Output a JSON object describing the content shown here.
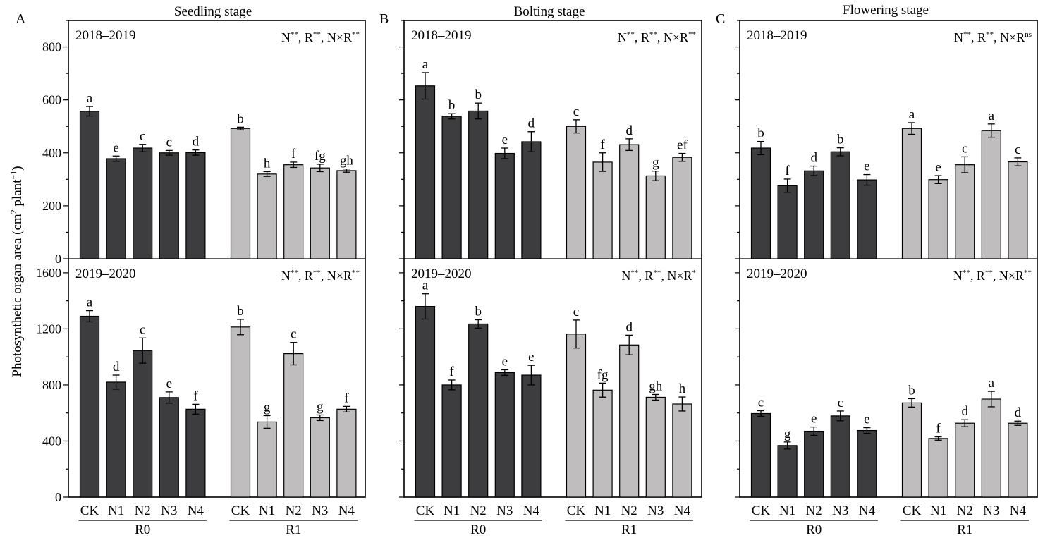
{
  "colors": {
    "R0": "#3d3d3f",
    "R1": "#c0bdbf"
  },
  "ylabel": {
    "prefix": "Photosynthetic organ area (cm",
    "sup1": "2",
    "mid": " plant",
    "sup2": "−1",
    "suffix": ")"
  },
  "group_labels": [
    "R0",
    "R1"
  ],
  "panels": [
    {
      "letter": "A",
      "title": "Seedling stage"
    },
    {
      "letter": "B",
      "title": "Bolting stage"
    },
    {
      "letter": "C",
      "title": "Flowering stage"
    }
  ],
  "rows": [
    {
      "year": "2018–2019",
      "ylim": [
        0,
        900
      ],
      "ticks": [
        0,
        200,
        400,
        600,
        800
      ]
    },
    {
      "year": "2019–2020",
      "ylim": [
        0,
        1700
      ],
      "ticks": [
        0,
        400,
        800,
        1200,
        1600
      ]
    }
  ],
  "chart_data": {
    "type": "bar",
    "categories": [
      "CK",
      "N1",
      "N2",
      "N3",
      "N4"
    ],
    "groups": [
      "R0",
      "R1"
    ],
    "ylabel": "Photosynthetic organ area (cm2 plant−1)",
    "subplots": [
      {
        "title": "Seedling stage",
        "letter": "A",
        "year": "2018–2019",
        "row": 0,
        "col": 0,
        "significance": [
          {
            "f": "N",
            "s": "**"
          },
          {
            "f": "R",
            "s": "**"
          },
          {
            "f": "N×R",
            "s": "**"
          }
        ],
        "series": [
          {
            "name": "R0",
            "values": [
              557,
              378,
              418,
              400,
              401
            ],
            "err": [
              18,
              10,
              14,
              9,
              10
            ],
            "labels": [
              "a",
              "e",
              "c",
              "c",
              "d"
            ]
          },
          {
            "name": "R1",
            "values": [
              492,
              320,
              355,
              343,
              333
            ],
            "err": [
              5,
              9,
              10,
              14,
              6
            ],
            "labels": [
              "b",
              "h",
              "f",
              "fg",
              "gh"
            ]
          }
        ]
      },
      {
        "title": "Bolting stage",
        "letter": "B",
        "year": "2018–2019",
        "row": 0,
        "col": 1,
        "significance": [
          {
            "f": "N",
            "s": "**"
          },
          {
            "f": "R",
            "s": "**"
          },
          {
            "f": "N×R",
            "s": "**"
          }
        ],
        "series": [
          {
            "name": "R0",
            "values": [
              653,
              538,
              558,
              398,
              442
            ],
            "err": [
              50,
              10,
              30,
              20,
              38
            ],
            "labels": [
              "a",
              "b",
              "b",
              "e",
              "d"
            ]
          },
          {
            "name": "R1",
            "values": [
              500,
              365,
              431,
              313,
              383
            ],
            "err": [
              25,
              35,
              22,
              18,
              15
            ],
            "labels": [
              "c",
              "f",
              "d",
              "g",
              "ef"
            ]
          }
        ]
      },
      {
        "title": "Flowering stage",
        "letter": "C",
        "year": "2018–2019",
        "row": 0,
        "col": 2,
        "significance": [
          {
            "f": "N",
            "s": "**"
          },
          {
            "f": "R",
            "s": "**"
          },
          {
            "f": "N×R",
            "s": "ns"
          }
        ],
        "series": [
          {
            "name": "R0",
            "values": [
              418,
              276,
              332,
              404,
              298
            ],
            "err": [
              25,
              25,
              18,
              15,
              20
            ],
            "labels": [
              "b",
              "f",
              "d",
              "b",
              "e"
            ]
          },
          {
            "name": "R1",
            "values": [
              492,
              299,
              355,
              484,
              366
            ],
            "err": [
              22,
              15,
              30,
              25,
              15
            ],
            "labels": [
              "a",
              "e",
              "c",
              "a",
              "c"
            ]
          }
        ]
      },
      {
        "title": "Seedling stage",
        "letter": "A",
        "year": "2019–2020",
        "row": 1,
        "col": 0,
        "significance": [
          {
            "f": "N",
            "s": "**"
          },
          {
            "f": "R",
            "s": "**"
          },
          {
            "f": "N×R",
            "s": "**"
          }
        ],
        "series": [
          {
            "name": "R0",
            "values": [
              1290,
              820,
              1045,
              710,
              627
            ],
            "err": [
              40,
              50,
              90,
              40,
              35
            ],
            "labels": [
              "a",
              "d",
              "c",
              "e",
              "f"
            ]
          },
          {
            "name": "R1",
            "values": [
              1213,
              536,
              1023,
              566,
              627
            ],
            "err": [
              55,
              45,
              80,
              20,
              20
            ],
            "labels": [
              "b",
              "g",
              "c",
              "g",
              "f"
            ]
          }
        ]
      },
      {
        "title": "Bolting stage",
        "letter": "B",
        "year": "2019–2020",
        "row": 1,
        "col": 1,
        "significance": [
          {
            "f": "N",
            "s": "**"
          },
          {
            "f": "R",
            "s": "**"
          },
          {
            "f": "N×R",
            "s": "*"
          }
        ],
        "series": [
          {
            "name": "R0",
            "values": [
              1360,
              800,
              1235,
              888,
              870
            ],
            "err": [
              90,
              35,
              30,
              20,
              70
            ],
            "labels": [
              "a",
              "f",
              "b",
              "e",
              "e"
            ]
          },
          {
            "name": "R1",
            "values": [
              1163,
              763,
              1085,
              712,
              664
            ],
            "err": [
              100,
              50,
              70,
              20,
              50
            ],
            "labels": [
              "c",
              "fg",
              "d",
              "gh",
              "h"
            ]
          }
        ]
      },
      {
        "title": "Flowering stage",
        "letter": "C",
        "year": "2019–2020",
        "row": 1,
        "col": 2,
        "significance": [
          {
            "f": "N",
            "s": "**"
          },
          {
            "f": "R",
            "s": "**"
          },
          {
            "f": "N×R",
            "s": "**"
          }
        ],
        "series": [
          {
            "name": "R0",
            "values": [
              596,
              368,
              470,
              579,
              475
            ],
            "err": [
              20,
              25,
              30,
              35,
              20
            ],
            "labels": [
              "c",
              "g",
              "e",
              "c",
              "e"
            ]
          },
          {
            "name": "R1",
            "values": [
              672,
              418,
              527,
              699,
              527
            ],
            "err": [
              30,
              12,
              25,
              55,
              15
            ],
            "labels": [
              "b",
              "f",
              "d",
              "a",
              "d"
            ]
          }
        ]
      }
    ]
  }
}
